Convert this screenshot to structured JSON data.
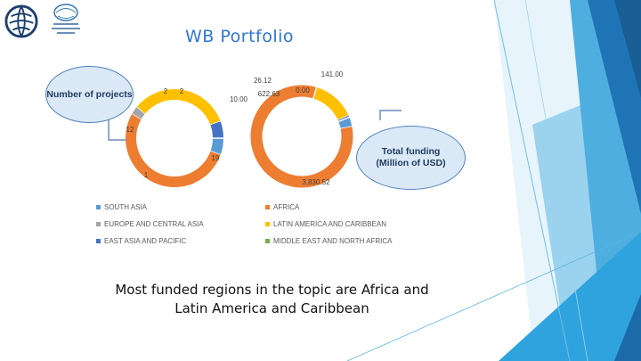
{
  "slide": {
    "title": "WB Portfolio",
    "caption_line1": "Most funded regions in the topic are Africa and",
    "caption_line2": "Latin America and Caribbean",
    "callout_projects": "Number of projects",
    "callout_funding": "Total funding (Million of USD)"
  },
  "legend": [
    {
      "label": "SOUTH ASIA",
      "color": "#5b9bd5"
    },
    {
      "label": "AFRICA",
      "color": "#ed7d31"
    },
    {
      "label": "EUROPE AND CENTRAL ASIA",
      "color": "#a5a5a5"
    },
    {
      "label": "LATIN AMERICA AND CARIBBEAN",
      "color": "#ffc000"
    },
    {
      "label": "EAST ASIA AND PACIFIC",
      "color": "#4472c4"
    },
    {
      "label": "MIDDLE EAST AND NORTH AFRICA",
      "color": "#70ad47"
    }
  ],
  "chart_data": [
    {
      "type": "pie",
      "title": "Number of projects",
      "categories": [
        "SOUTH ASIA",
        "AFRICA",
        "EUROPE AND CENTRAL ASIA",
        "LATIN AMERICA AND CARIBBEAN",
        "EAST ASIA AND PACIFIC",
        "MIDDLE EAST AND NORTH AFRICA"
      ],
      "values": [
        2,
        19,
        1,
        12,
        2,
        0
      ],
      "labels": [
        "2",
        "19",
        "1",
        "12",
        "2",
        ""
      ]
    },
    {
      "type": "pie",
      "title": "Total funding (Million of USD)",
      "categories": [
        "SOUTH ASIA",
        "AFRICA",
        "EUROPE AND CENTRAL ASIA",
        "LATIN AMERICA AND CARIBBEAN",
        "EAST ASIA AND PACIFIC",
        "MIDDLE EAST AND NORTH AFRICA"
      ],
      "values": [
        141.0,
        3830.52,
        10.0,
        622.63,
        26.12,
        0.0
      ],
      "labels": [
        "141.00",
        "3,830.52",
        "10.00",
        "622.63",
        "26.12",
        "0.00"
      ]
    }
  ]
}
